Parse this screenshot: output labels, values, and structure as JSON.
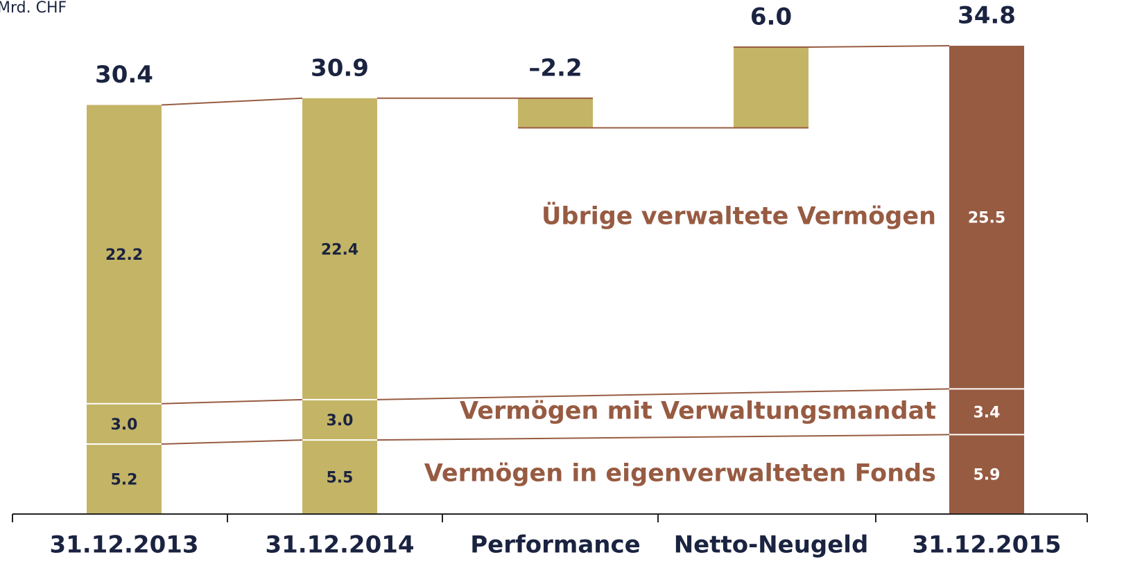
{
  "chart_data": {
    "type": "waterfall",
    "unit": "Mrd. CHF",
    "categories": [
      "31.12.2013",
      "31.12.2014",
      "Performance",
      "Netto-Neugeld",
      "31.12.2015"
    ],
    "values": [
      30.4,
      30.9,
      -2.2,
      6.0,
      34.8
    ],
    "value_labels": [
      "30.4",
      "30.9",
      "–2.2",
      "6.0",
      "34.8"
    ],
    "colors": [
      "#c4b466",
      "#c4b466",
      "#c4b466",
      "#c4b466",
      "#975b42"
    ],
    "series": [
      {
        "name": "Vermögen in eigenverwalteten Fonds",
        "values": [
          5.2,
          5.5,
          null,
          null,
          5.9
        ],
        "value_labels": [
          "5.2",
          "5.5",
          null,
          null,
          "5.9"
        ]
      },
      {
        "name": "Vermögen mit Verwaltungsmandat",
        "values": [
          3.0,
          3.0,
          null,
          null,
          3.4
        ],
        "value_labels": [
          "3.0",
          "3.0",
          null,
          null,
          "3.4"
        ]
      },
      {
        "name": "Übrige verwaltete Vermögen",
        "values": [
          22.2,
          22.4,
          null,
          null,
          25.5
        ],
        "value_labels": [
          "22.2",
          "22.4",
          null,
          null,
          "25.5"
        ]
      }
    ],
    "ylim": [
      0,
      38.2
    ]
  }
}
